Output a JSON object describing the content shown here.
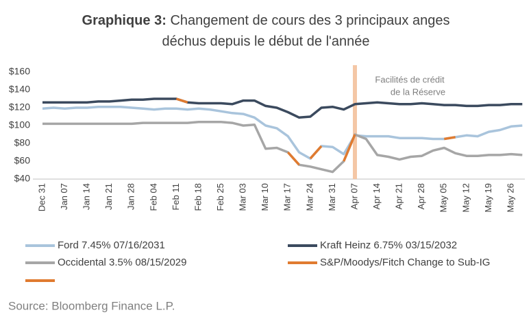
{
  "chart_data": {
    "type": "line",
    "title_label": "Graphique 3:",
    "title": [
      "Changement de cours des 3 principaux anges",
      "déchus depuis le début de l'année"
    ],
    "source": "Source: Bloomberg Finance L.P.",
    "categories": [
      "Dec 31",
      null,
      "Jan 07",
      null,
      "Jan 14",
      null,
      "Jan 21",
      null,
      "Jan 28",
      null,
      "Feb 04",
      null,
      "Feb 11",
      null,
      "Feb 18",
      null,
      "Feb 25",
      null,
      "Mar 03",
      null,
      "Mar 10",
      null,
      "Mar 17",
      null,
      "Mar 24",
      null,
      "Mar 31",
      null,
      "Apr 07",
      null,
      "Apr 14",
      null,
      "Apr 21",
      null,
      "Apr 28",
      null,
      "May 05",
      null,
      "May 12",
      null,
      "May 19",
      null,
      "May 26",
      null
    ],
    "ylim": [
      40,
      160
    ],
    "yticks": [
      {
        "value": 40,
        "label": "$40"
      },
      {
        "value": 60,
        "label": "$60"
      },
      {
        "value": 80,
        "label": "$80"
      },
      {
        "value": 100,
        "label": "$100"
      },
      {
        "value": 120,
        "label": "$120"
      },
      {
        "value": 140,
        "label": "$140"
      },
      {
        "value": 160,
        "label": "$160"
      }
    ],
    "grid": false,
    "annotations": [
      {
        "lines": [
          "Facilités de crédit",
          "de la Réserve"
        ],
        "x": "Apr 07",
        "color": "#f4c7a6"
      }
    ],
    "series": [
      {
        "name": "Ford 7.45% 07/16/2031",
        "color": "#a9c4dc",
        "values": [
          119,
          120,
          119,
          120,
          120,
          121,
          121,
          121,
          120,
          119,
          118,
          119,
          119,
          118,
          119,
          118,
          116,
          114,
          113,
          109,
          100,
          97,
          88,
          70,
          63,
          77,
          76,
          68,
          89,
          88,
          88,
          88,
          86,
          86,
          86,
          85,
          85,
          87,
          89,
          88,
          93,
          95,
          99,
          100
        ]
      },
      {
        "name": "Kraft Heinz 6.75% 03/15/2032",
        "color": "#3b4a5e",
        "values": [
          126,
          126,
          126,
          126,
          126,
          127,
          127,
          128,
          129,
          129,
          130,
          130,
          130,
          126,
          125,
          125,
          125,
          124,
          128,
          128,
          122,
          120,
          115,
          109,
          110,
          120,
          121,
          118,
          124,
          125,
          126,
          125,
          124,
          124,
          125,
          124,
          123,
          123,
          122,
          122,
          123,
          123,
          124,
          124
        ]
      },
      {
        "name": "Occidental 3.5% 08/15/2029",
        "color": "#a6a6a6",
        "values": [
          102,
          102,
          102,
          102,
          102,
          102,
          102,
          102,
          102,
          103,
          103,
          103,
          103,
          103,
          104,
          104,
          104,
          103,
          100,
          101,
          74,
          75,
          70,
          56,
          54,
          51,
          48,
          60,
          90,
          85,
          67,
          65,
          62,
          65,
          66,
          72,
          75,
          69,
          66,
          66,
          67,
          67,
          68,
          67
        ]
      },
      {
        "name": "S&P/Moodys/Fitch Change to Sub-IG",
        "color": "#e07b30",
        "values": [
          null,
          null,
          null,
          null,
          null,
          null,
          null,
          null,
          null,
          null,
          null,
          null,
          130,
          126,
          null,
          null,
          null,
          null,
          null,
          null,
          null,
          null,
          70,
          56,
          null,
          null,
          null,
          60,
          90,
          null,
          null,
          null,
          null,
          null,
          null,
          null,
          85,
          87,
          null,
          null,
          null,
          null,
          null,
          null
        ]
      },
      {
        "color": "#e07b30",
        "values": [
          null,
          null,
          null,
          null,
          null,
          null,
          null,
          null,
          null,
          null,
          null,
          null,
          null,
          null,
          null,
          null,
          null,
          null,
          null,
          null,
          null,
          null,
          null,
          null,
          63,
          77,
          null,
          null,
          null,
          null,
          null,
          null,
          null,
          null,
          null,
          null,
          null,
          null,
          null,
          null,
          null,
          null,
          null,
          null
        ]
      }
    ]
  }
}
